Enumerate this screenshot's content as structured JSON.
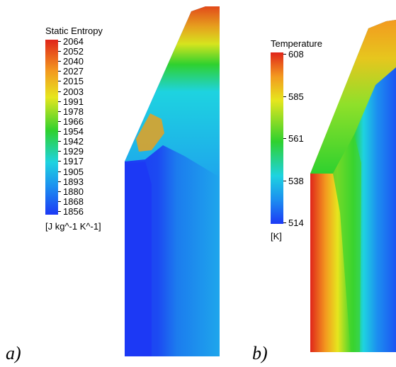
{
  "panel_a": {
    "label": "a)",
    "legend": {
      "title": "Static Entropy",
      "ticks": [
        "2064",
        "2052",
        "2040",
        "2027",
        "2015",
        "2003",
        "1991",
        "1978",
        "1966",
        "1954",
        "1942",
        "1929",
        "1917",
        "1905",
        "1893",
        "1880",
        "1868",
        "1856"
      ],
      "unit": "[J kg^-1 K^-1]"
    }
  },
  "panel_b": {
    "label": "b)",
    "legend": {
      "title": "Temperature",
      "ticks": [
        "608",
        "585",
        "561",
        "538",
        "514"
      ],
      "unit": "[K]"
    }
  },
  "colors": {
    "red": "#e0251a",
    "orange": "#f39a1f",
    "yellow": "#e6e61e",
    "green": "#2fd12e",
    "cyan": "#1ed3e0",
    "blue": "#1c39f5"
  }
}
